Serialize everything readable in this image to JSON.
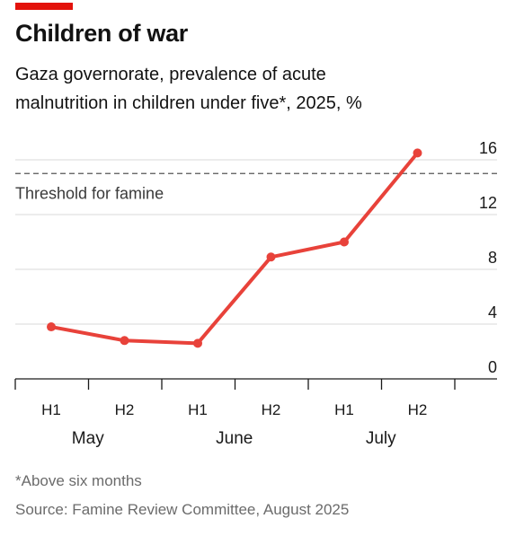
{
  "title": "Children of war",
  "subtitle_line1": "Gaza governorate, prevalence of acute",
  "subtitle_line2": "malnutrition in children under five*, 2025, %",
  "footnote": "*Above six months",
  "source": "Source: Famine Review Committee, August 2025",
  "colors": {
    "accent": "#e3120b",
    "line": "#e8423a",
    "grid": "#d9d9d9",
    "threshold": "#555555"
  },
  "chart_data": {
    "type": "line",
    "title": "Children of war",
    "subtitle": "Gaza governorate, prevalence of acute malnutrition in children under five*, 2025, %",
    "categories": [
      "H1",
      "H2",
      "H1",
      "H2",
      "H1",
      "H2"
    ],
    "groups": [
      {
        "label": "May",
        "categories": [
          "H1",
          "H2"
        ]
      },
      {
        "label": "June",
        "categories": [
          "H1",
          "H2"
        ]
      },
      {
        "label": "July",
        "categories": [
          "H1",
          "H2"
        ]
      }
    ],
    "series": [
      {
        "values": [
          3.8,
          2.8,
          2.6,
          8.9,
          10.0,
          16.5
        ]
      }
    ],
    "ylim": [
      0,
      16
    ],
    "yticks": [
      0,
      4,
      8,
      12,
      16
    ],
    "y_axis_side": "right",
    "grid": true,
    "reference_lines": [
      {
        "value": 15,
        "label": "Threshold for famine",
        "style": "dashed"
      }
    ]
  }
}
